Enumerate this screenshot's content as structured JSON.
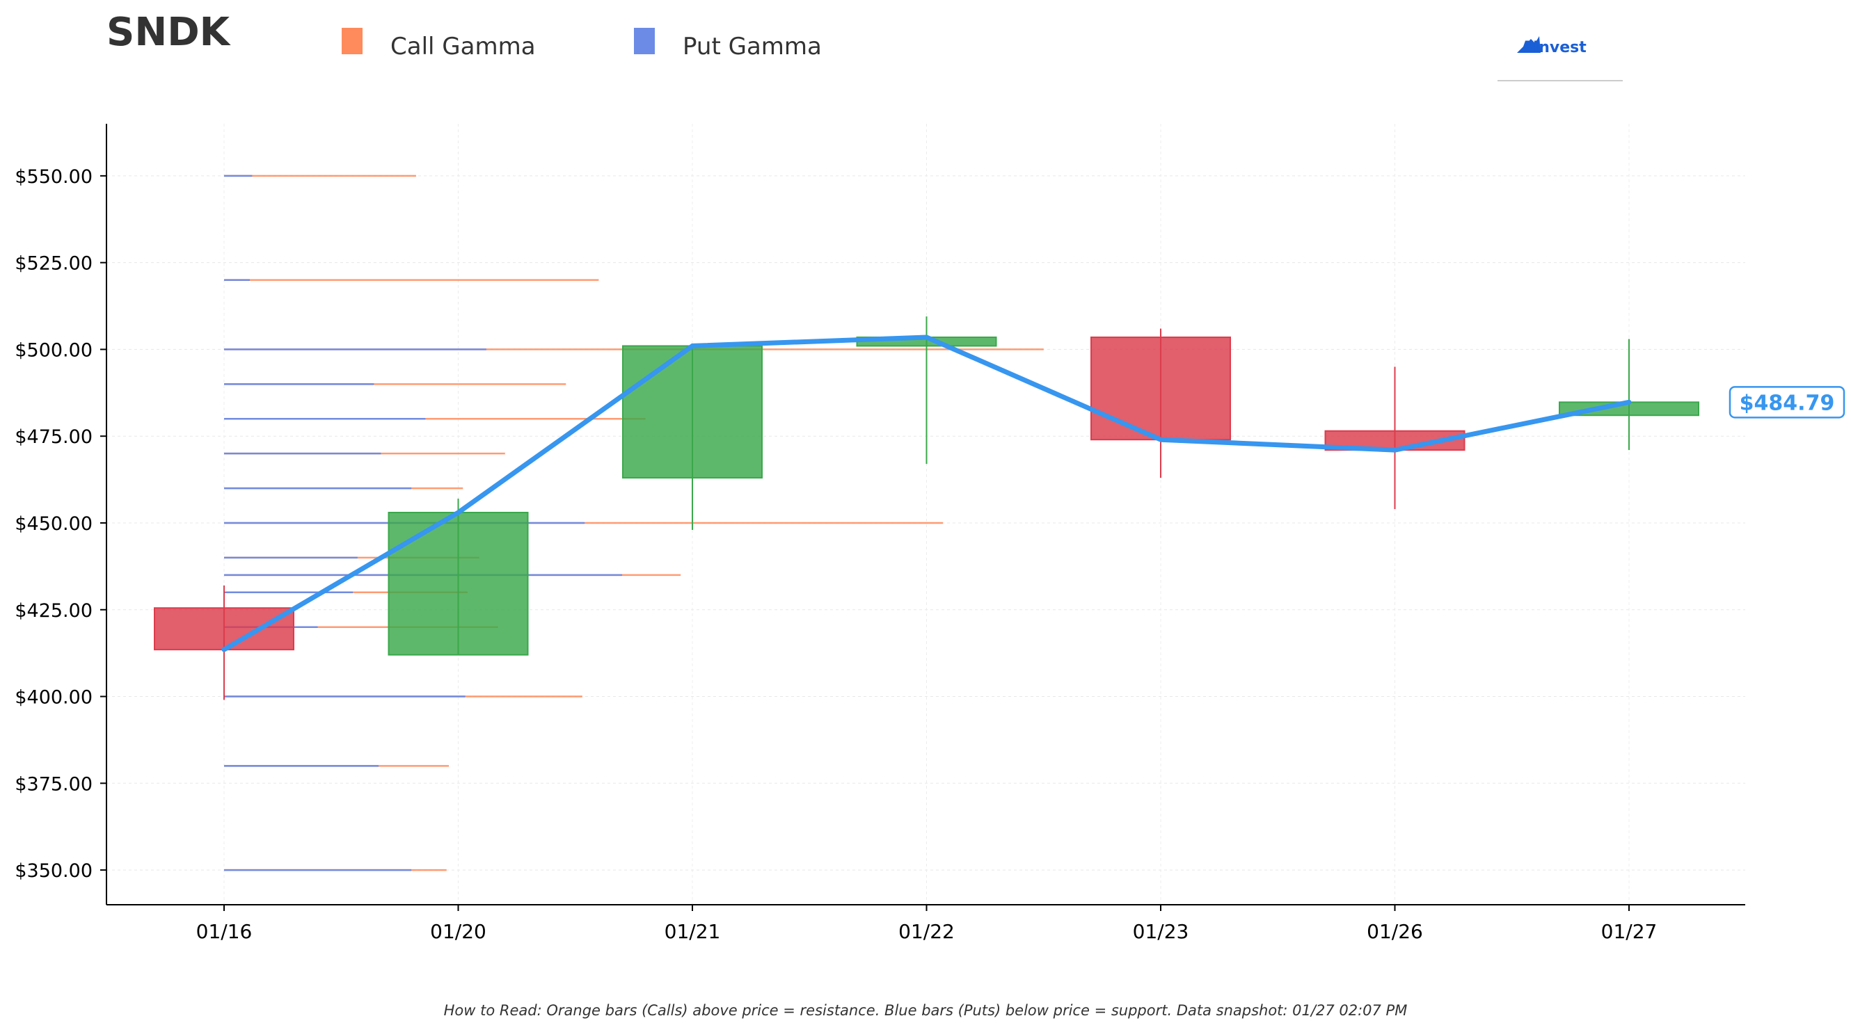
{
  "chart_data": {
    "type": "candlestick",
    "title": "SNDK",
    "legend": {
      "placement": "top",
      "entries": [
        {
          "label": "Call Gamma",
          "color": "#ff8a5b"
        },
        {
          "label": "Put Gamma",
          "color": "#6b8be6"
        }
      ]
    },
    "logo_text": "AInvest",
    "categories": [
      "01/16",
      "01/20",
      "01/21",
      "01/22",
      "01/23",
      "01/26",
      "01/27"
    ],
    "y_axis": {
      "min": 340,
      "max": 565,
      "ticks": [
        350,
        375,
        400,
        425,
        450,
        475,
        500,
        525,
        550
      ],
      "tick_labels": [
        "$350.00",
        "$375.00",
        "$400.00",
        "$425.00",
        "$450.00",
        "$475.00",
        "$500.00",
        "$525.00",
        "$550.00"
      ]
    },
    "candles": [
      {
        "date": "01/16",
        "open": 425.5,
        "close": 413.5,
        "high": 432,
        "low": 399
      },
      {
        "date": "01/20",
        "open": 412,
        "close": 453,
        "high": 457,
        "low": 412
      },
      {
        "date": "01/21",
        "open": 463,
        "close": 501,
        "high": 501,
        "low": 448
      },
      {
        "date": "01/22",
        "open": 501,
        "close": 503.5,
        "high": 509.5,
        "low": 467
      },
      {
        "date": "01/23",
        "open": 503.5,
        "close": 474,
        "high": 506,
        "low": 463
      },
      {
        "date": "01/26",
        "open": 476.5,
        "close": 471,
        "high": 495,
        "low": 454
      },
      {
        "date": "01/27",
        "open": 481,
        "close": 484.79,
        "high": 503,
        "low": 471
      }
    ],
    "price_line": [
      413.5,
      453,
      501,
      503.5,
      474,
      471,
      484.79
    ],
    "current_price_label": "$484.79",
    "gamma_levels": [
      {
        "strike": 550,
        "put": 0.12,
        "call": 0.82
      },
      {
        "strike": 520,
        "put": 0.11,
        "call": 1.6
      },
      {
        "strike": 500,
        "put": 1.12,
        "call": 3.5
      },
      {
        "strike": 490,
        "put": 0.64,
        "call": 1.46
      },
      {
        "strike": 480,
        "put": 0.86,
        "call": 1.8
      },
      {
        "strike": 470,
        "put": 0.67,
        "call": 1.2
      },
      {
        "strike": 460,
        "put": 0.8,
        "call": 1.02
      },
      {
        "strike": 450,
        "put": 1.54,
        "call": 3.07
      },
      {
        "strike": 440,
        "put": 0.57,
        "call": 1.09
      },
      {
        "strike": 435,
        "put": 1.7,
        "call": 1.95
      },
      {
        "strike": 430,
        "put": 0.55,
        "call": 1.04
      },
      {
        "strike": 420,
        "put": 0.4,
        "call": 1.17
      },
      {
        "strike": 400,
        "put": 1.03,
        "call": 1.53
      },
      {
        "strike": 380,
        "put": 0.66,
        "call": 0.96
      },
      {
        "strike": 350,
        "put": 0.8,
        "call": 0.95
      }
    ],
    "grid": true,
    "colors": {
      "up": "#3aa84b",
      "down": "#dc3c4c",
      "price_line": "#3796ef",
      "call": "#ff8a5b",
      "put": "#6b8be6",
      "title": "#333333",
      "logo": "#1a5fd6"
    },
    "footnote": "How to Read: Orange bars (Calls) above price = resistance. Blue bars (Puts) below price = support. Data snapshot: 01/27 02:07 PM"
  }
}
